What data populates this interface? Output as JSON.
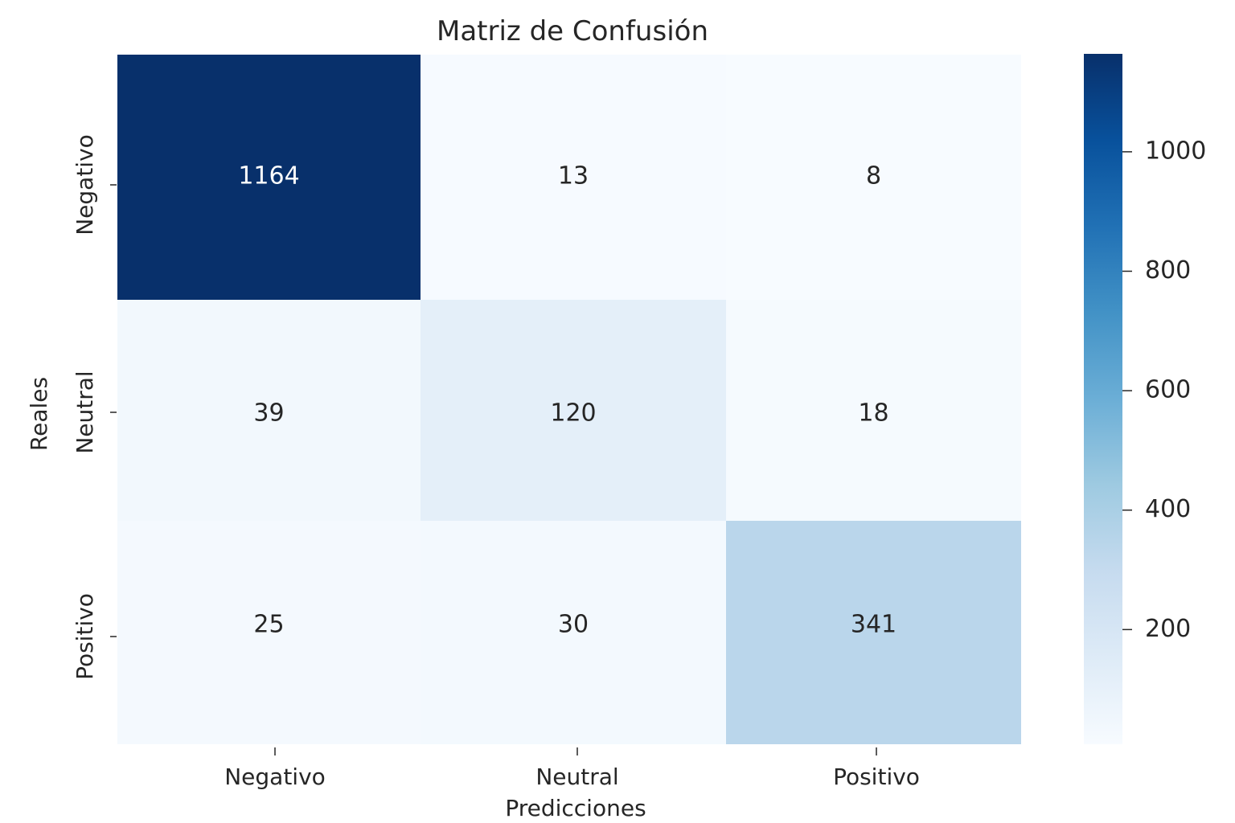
{
  "chart_data": {
    "type": "heatmap",
    "title": "Matriz de Confusión",
    "xlabel": "Predicciones",
    "ylabel": "Reales",
    "x_categories": [
      "Negativo",
      "Neutral",
      "Positivo"
    ],
    "y_categories": [
      "Negativo",
      "Neutral",
      "Positivo"
    ],
    "values": [
      [
        1164,
        13,
        8
      ],
      [
        39,
        120,
        18
      ],
      [
        25,
        30,
        341
      ]
    ],
    "colormap": "Blues",
    "colorbar": {
      "vmin": 8,
      "vmax": 1164,
      "ticks": [
        200,
        400,
        600,
        800,
        1000
      ]
    },
    "colors": {
      "low": "#f7fbff",
      "high": "#08306b",
      "text_dark": "#262626",
      "text_light": "#ffffff"
    }
  }
}
